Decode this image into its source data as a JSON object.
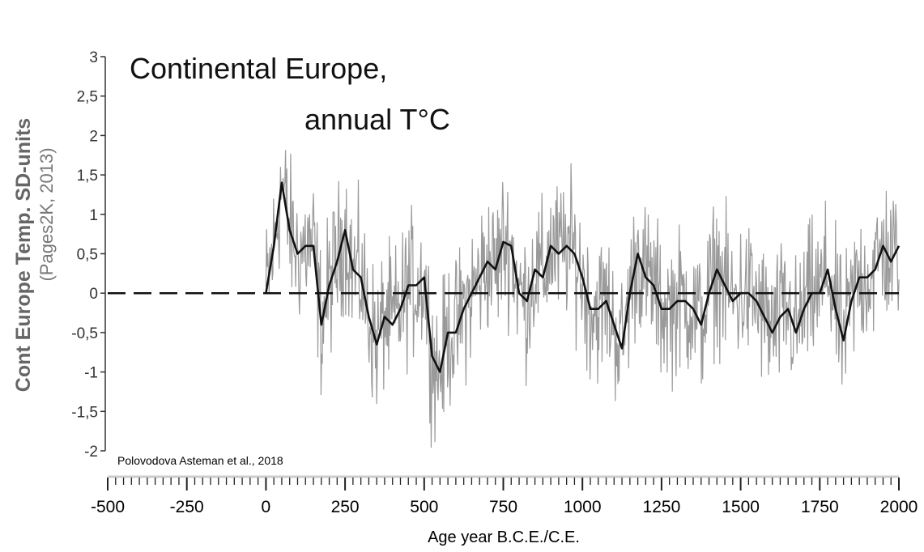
{
  "chart_data": {
    "type": "line",
    "title_line1": "Continental Europe,",
    "title_line2": "annual T°C",
    "ylabel": "Cont Europe Temp. SD-units",
    "ylabel_source": "(Pages2K, 2013)",
    "xlabel": "Age year B.C.E./C.E.",
    "annotation": "Polovodova Asteman et al., 2018",
    "xlim": [
      -500,
      2000
    ],
    "ylim": [
      -2,
      3
    ],
    "y_ticks": [
      3,
      2.5,
      2,
      1.5,
      1,
      0.5,
      0,
      -0.5,
      -1,
      -1.5,
      -2
    ],
    "y_tick_labels": [
      "3",
      "2,5",
      "2",
      "1,5",
      "1",
      "0,5",
      "0",
      "-0,5",
      "-1",
      "-1,5",
      "-2"
    ],
    "x_ticks": [
      -500,
      -250,
      0,
      250,
      500,
      750,
      1000,
      1250,
      1500,
      1750,
      2000
    ],
    "x_tick_labels": [
      "-500",
      "-250",
      "0",
      "250",
      "500",
      "750",
      "1000",
      "1250",
      "1500",
      "1750",
      "2000"
    ],
    "reference_line": {
      "y": 0,
      "style": "dashed",
      "from": -500,
      "to": 2000
    },
    "grid": false,
    "series": [
      {
        "name": "smoothed",
        "color": "#111111",
        "x": [
          0,
          25,
          50,
          75,
          100,
          125,
          150,
          175,
          200,
          225,
          250,
          275,
          300,
          325,
          350,
          375,
          400,
          425,
          450,
          475,
          500,
          525,
          550,
          575,
          600,
          625,
          650,
          675,
          700,
          725,
          750,
          775,
          800,
          825,
          850,
          875,
          900,
          925,
          950,
          975,
          1000,
          1025,
          1050,
          1075,
          1100,
          1125,
          1150,
          1175,
          1200,
          1225,
          1250,
          1275,
          1300,
          1325,
          1350,
          1375,
          1400,
          1425,
          1450,
          1475,
          1500,
          1525,
          1550,
          1575,
          1600,
          1625,
          1650,
          1675,
          1700,
          1725,
          1750,
          1775,
          1800,
          1825,
          1850,
          1875,
          1900,
          1925,
          1950,
          1975,
          2000
        ],
        "y": [
          0,
          0.6,
          1.4,
          0.8,
          0.5,
          0.6,
          0.6,
          -0.4,
          0.1,
          0.4,
          0.8,
          0.3,
          0.2,
          -0.3,
          -0.65,
          -0.3,
          -0.4,
          -0.2,
          0.1,
          0.1,
          0.2,
          -0.8,
          -1.0,
          -0.5,
          -0.5,
          -0.2,
          0.0,
          0.2,
          0.4,
          0.3,
          0.65,
          0.6,
          0.0,
          -0.1,
          0.3,
          0.2,
          0.6,
          0.5,
          0.6,
          0.5,
          0.2,
          -0.2,
          -0.2,
          -0.1,
          -0.4,
          -0.7,
          0.0,
          0.5,
          0.2,
          0.1,
          -0.2,
          -0.2,
          -0.1,
          -0.1,
          -0.2,
          -0.4,
          0.0,
          0.3,
          0.1,
          -0.1,
          0.0,
          0.0,
          -0.1,
          -0.3,
          -0.5,
          -0.3,
          -0.2,
          -0.5,
          -0.2,
          0.0,
          0.0,
          0.3,
          -0.2,
          -0.6,
          -0.1,
          0.2,
          0.2,
          0.3,
          0.6,
          0.4,
          0.6
        ]
      },
      {
        "name": "annual",
        "color": "#9a9a9a",
        "note_sd": 0.45
      }
    ]
  }
}
